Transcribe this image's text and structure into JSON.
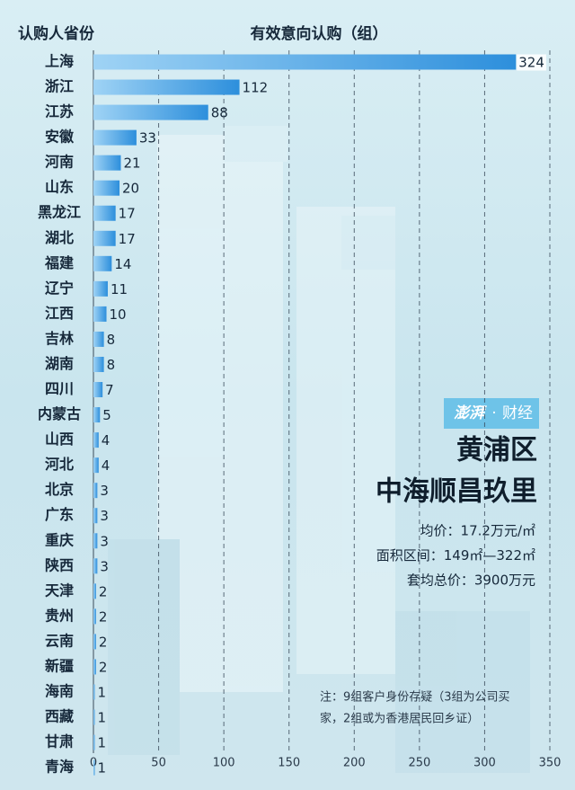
{
  "chart_data": {
    "type": "bar",
    "category_header": "认购人省份",
    "value_header": "有效意向认购（组）",
    "categories": [
      "上海",
      "浙江",
      "江苏",
      "安徽",
      "河南",
      "山东",
      "黑龙江",
      "湖北",
      "福建",
      "辽宁",
      "江西",
      "吉林",
      "湖南",
      "四川",
      "内蒙古",
      "山西",
      "河北",
      "北京",
      "广东",
      "重庆",
      "陕西",
      "天津",
      "贵州",
      "云南",
      "新疆",
      "海南",
      "西藏",
      "甘肃",
      "青海"
    ],
    "values": [
      324,
      112,
      88,
      33,
      21,
      20,
      17,
      17,
      14,
      11,
      10,
      8,
      8,
      7,
      5,
      4,
      4,
      3,
      3,
      3,
      3,
      2,
      2,
      2,
      2,
      1,
      1,
      1,
      1
    ],
    "color": "#2d8fdc",
    "xlim": [
      0,
      350
    ],
    "xticks": [
      0,
      50,
      100,
      150,
      200,
      250,
      300,
      350
    ],
    "grid": true,
    "brand": "澎湃",
    "section": "财经",
    "title_lines": [
      "黄浦区",
      "中海顺昌玖里"
    ],
    "info_lines": [
      "均价：17.2万元/㎡",
      "面积区间：149㎡—322㎡",
      "套均总价：3900万元"
    ],
    "note_lines": [
      "注：9组客户身份存疑（3组为公司买",
      "家，2组或为香港居民回乡证）"
    ]
  }
}
